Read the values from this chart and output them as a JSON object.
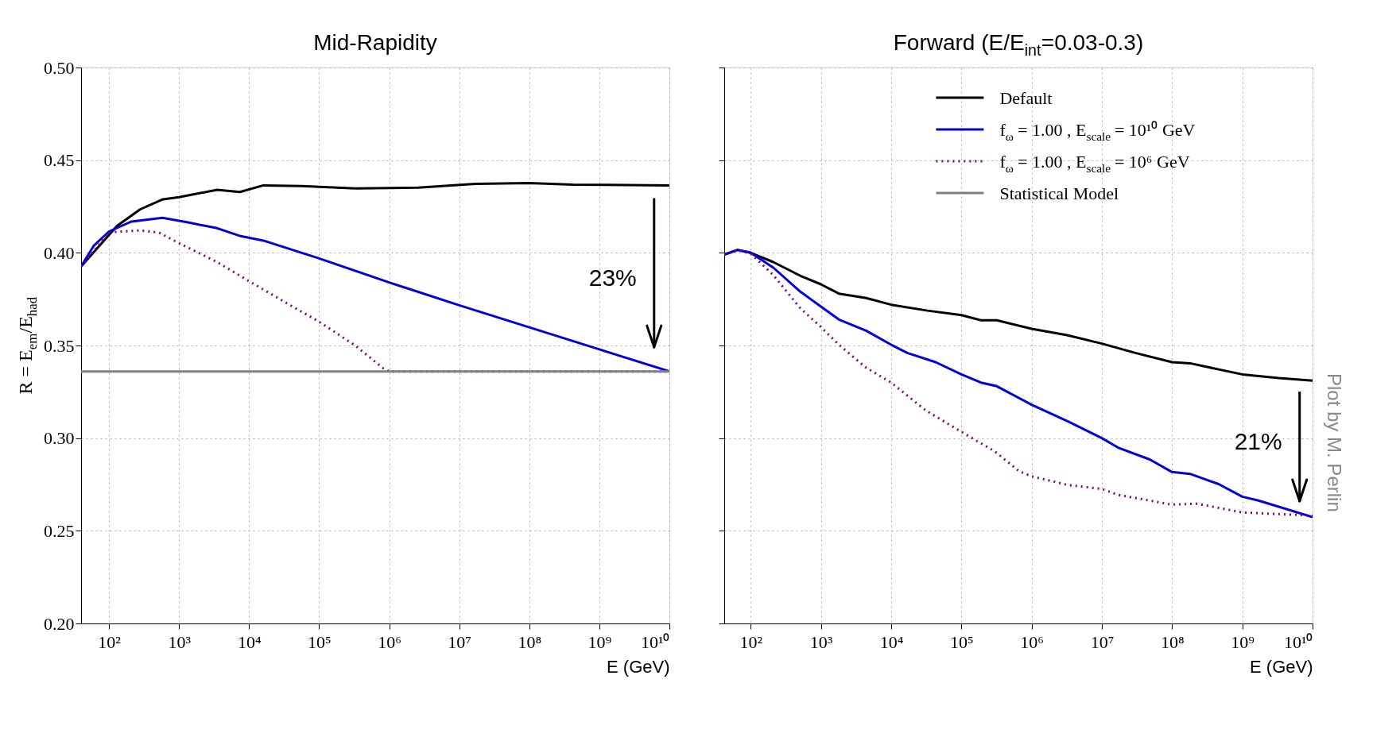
{
  "chart_data": [
    {
      "type": "line",
      "title": "Mid-Rapidity",
      "xlabel": "E (GeV)",
      "ylabel": "R = E$_{em}$/E$_{had}$",
      "log": "x",
      "grid": true,
      "xlim": [
        40,
        10000000000.0
      ],
      "ylim": [
        0.2,
        0.5
      ],
      "xticks": [
        {
          "value": 100,
          "label": "10²"
        },
        {
          "value": 1000,
          "label": "10³"
        },
        {
          "value": 10000.0,
          "label": "10⁴"
        },
        {
          "value": 100000.0,
          "label": "10⁵"
        },
        {
          "value": 1000000.0,
          "label": "10⁶"
        },
        {
          "value": 10000000.0,
          "label": "10⁷"
        },
        {
          "value": 100000000.0,
          "label": "10⁸"
        },
        {
          "value": 1000000000.0,
          "label": "10⁹"
        },
        {
          "value": 10000000000.0,
          "label": "10¹⁰"
        }
      ],
      "yticks": [
        {
          "value": 0.2,
          "label": "0.20"
        },
        {
          "value": 0.25,
          "label": "0.25"
        },
        {
          "value": 0.3,
          "label": "0.30"
        },
        {
          "value": 0.35,
          "label": "0.35"
        },
        {
          "value": 0.4,
          "label": "0.40"
        },
        {
          "value": 0.45,
          "label": "0.45"
        },
        {
          "value": 0.5,
          "label": "0.50"
        }
      ],
      "series": [
        {
          "color": "#000000",
          "line_style": "solid",
          "x": [
            40,
            130,
            280,
            590,
            1000,
            3500,
            7400,
            16000.0,
            56000.0,
            330000.0,
            2600000.0,
            17000000.0,
            100000000.0,
            420000000.0,
            10000000000.0
          ],
          "values": [
            0.3926,
            0.4145,
            0.4235,
            0.4289,
            0.43,
            0.434,
            0.4328,
            0.4364,
            0.436,
            0.4348,
            0.4352,
            0.4372,
            0.4376,
            0.4368,
            0.4364
          ]
        },
        {
          "color": "#0000dd",
          "line_style": "solid",
          "x": [
            40,
            60,
            100,
            210,
            580,
            1300,
            3500,
            7600,
            16000.0,
            100000.0,
            1000000.0,
            10000000.0,
            100000000.0,
            1000000000.0,
            10000000000.0
          ],
          "values": [
            0.3926,
            0.4036,
            0.4115,
            0.4169,
            0.4189,
            0.4165,
            0.4133,
            0.409,
            0.4066,
            0.397,
            0.384,
            0.3717,
            0.3598,
            0.3479,
            0.336
          ]
        },
        {
          "color": "#800080",
          "line_style": "dotted",
          "x": [
            40,
            100,
            280,
            520,
            1000,
            3500,
            10000.0,
            35000.0,
            100000.0,
            330000.0,
            810000.0,
            1000000.0,
            10000000000.0
          ],
          "values": [
            0.3926,
            0.4111,
            0.4121,
            0.4109,
            0.4052,
            0.395,
            0.3847,
            0.3727,
            0.3628,
            0.3499,
            0.3379,
            0.336,
            0.336
          ]
        },
        {
          "color": "#808080",
          "line_style": "solid",
          "x": [
            40,
            10000000000.0
          ],
          "values": [
            0.336,
            0.336
          ]
        }
      ],
      "annotations": [
        "23%"
      ]
    },
    {
      "type": "line",
      "title": "Forward (E/E$_{int}$=0.03-0.3)",
      "xlabel": "E (GeV)",
      "log": "x",
      "grid": true,
      "legend": "top right",
      "tick_labels": "x",
      "xlim": [
        42,
        10000000000.0
      ],
      "ylim": [
        0.2,
        0.5
      ],
      "xticks": [
        {
          "value": 100,
          "label": "10²"
        },
        {
          "value": 1000,
          "label": "10³"
        },
        {
          "value": 10000.0,
          "label": "10⁴"
        },
        {
          "value": 100000.0,
          "label": "10⁵"
        },
        {
          "value": 1000000.0,
          "label": "10⁶"
        },
        {
          "value": 10000000.0,
          "label": "10⁷"
        },
        {
          "value": 100000000.0,
          "label": "10⁸"
        },
        {
          "value": 1000000000.0,
          "label": "10⁹"
        },
        {
          "value": 10000000000.0,
          "label": "10¹⁰"
        }
      ],
      "yticks": [
        0.2,
        0.25,
        0.3,
        0.35,
        0.4,
        0.45,
        0.5
      ],
      "series": [
        {
          "name": "Default",
          "color": "#000000",
          "line_style": "solid",
          "x": [
            42,
            65,
            100,
            210,
            510,
            1000,
            1800,
            4400,
            10000.0,
            33000.0,
            100000.0,
            190000.0,
            320000.0,
            1000000.0,
            3200000.0,
            10000000.0,
            30000000.0,
            100000000.0,
            180000000.0,
            1000000000.0,
            3300000000.0,
            10000000000.0
          ],
          "values": [
            0.399,
            0.4016,
            0.4,
            0.395,
            0.3876,
            0.383,
            0.378,
            0.3756,
            0.372,
            0.3688,
            0.3664,
            0.3636,
            0.3636,
            0.359,
            0.3556,
            0.351,
            0.346,
            0.341,
            0.3404,
            0.3344,
            0.3324,
            0.331
          ]
        },
        {
          "name": "f$_{ω}$ = 1.00 , E$_{scale}$ = 10¹⁰ GeV",
          "color": "#0000dd",
          "line_style": "solid",
          "x": [
            42,
            65,
            100,
            210,
            510,
            1000,
            1800,
            4400,
            10000.0,
            17000.0,
            43000.0,
            100000.0,
            190000.0,
            320000.0,
            1000000.0,
            3300000.0,
            10000000.0,
            17000000.0,
            48000000.0,
            100000000.0,
            180000000.0,
            460000000.0,
            1000000000.0,
            1700000000.0,
            10000000000.0
          ],
          "values": [
            0.399,
            0.4016,
            0.4,
            0.392,
            0.379,
            0.371,
            0.364,
            0.358,
            0.3504,
            0.346,
            0.341,
            0.3344,
            0.33,
            0.328,
            0.318,
            0.309,
            0.3,
            0.2949,
            0.2885,
            0.2817,
            0.2807,
            0.2752,
            0.2684,
            0.2663,
            0.2574
          ]
        },
        {
          "name": "f$_{ω}$ = 1.00 , E$_{scale}$ = 10⁶ GeV",
          "color": "#800080",
          "line_style": "dotted",
          "x": [
            42,
            65,
            100,
            210,
            510,
            1000,
            1800,
            4400,
            10000.0,
            31000.0,
            100000.0,
            300000.0,
            660000.0,
            1000000.0,
            3300000.0,
            10000000.0,
            17000000.0,
            100000000.0,
            230000000.0,
            1000000000.0,
            10000000000.0
          ],
          "values": [
            0.399,
            0.4014,
            0.3996,
            0.388,
            0.37,
            0.36,
            0.3504,
            0.338,
            0.33,
            0.315,
            0.3034,
            0.2928,
            0.2822,
            0.2794,
            0.2747,
            0.2726,
            0.2694,
            0.2641,
            0.2646,
            0.2599,
            0.2582
          ]
        },
        {
          "name": "Statistical Model",
          "color": "#808080",
          "line_style": "solid"
        }
      ],
      "annotations": [
        "21%",
        "Plot by M. Perlin"
      ]
    }
  ]
}
